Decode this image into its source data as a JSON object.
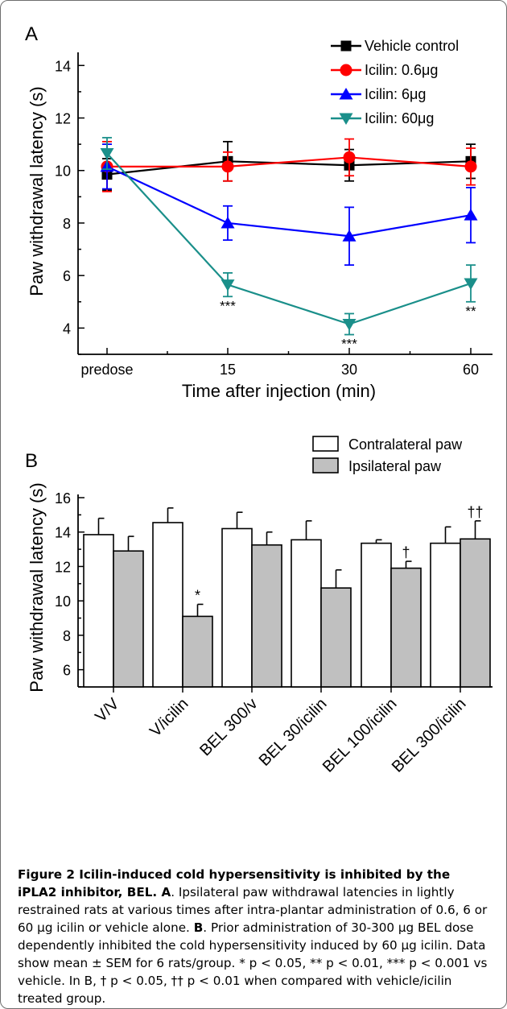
{
  "chart_data": [
    {
      "panel": "A",
      "type": "line",
      "ylabel": "Paw withdrawal latency (s)",
      "xlabel": "Time after injection (min)",
      "categories": [
        "predose",
        "15",
        "30",
        "60"
      ],
      "ylim": [
        3,
        14.5
      ],
      "yticks": [
        4,
        6,
        8,
        10,
        12,
        14
      ],
      "legend_position": "top-right",
      "series": [
        {
          "name": "Vehicle control",
          "color": "#000000",
          "marker": "square",
          "values": [
            9.85,
            10.35,
            10.2,
            10.35
          ],
          "errors": [
            0.6,
            0.75,
            0.6,
            0.65
          ]
        },
        {
          "name": "Icilin: 0.6μg",
          "color": "#ff0000",
          "marker": "circle",
          "values": [
            10.15,
            10.15,
            10.5,
            10.15
          ],
          "errors": [
            0.95,
            0.55,
            0.7,
            0.7
          ]
        },
        {
          "name": "Icilin: 6μg",
          "color": "#0000ff",
          "marker": "triangle-up",
          "values": [
            10.15,
            8.0,
            7.5,
            8.3
          ],
          "errors": [
            0.85,
            0.65,
            1.1,
            1.05
          ]
        },
        {
          "name": "Icilin: 60μg",
          "color": "#1a8f8a",
          "marker": "triangle-down",
          "values": [
            10.65,
            5.65,
            4.15,
            5.7
          ],
          "errors": [
            0.6,
            0.45,
            0.4,
            0.7
          ]
        }
      ],
      "annotations": [
        {
          "category": "15",
          "text": "***"
        },
        {
          "category": "30",
          "text": "***"
        },
        {
          "category": "60",
          "text": "**"
        }
      ]
    },
    {
      "panel": "B",
      "type": "bar",
      "ylabel": "Paw withdrawal latency (s)",
      "categories": [
        "V/V",
        "V/icilin",
        "BEL 300/v",
        "BEL 30/icilin",
        "BEL 100/icilin",
        "BEL 300/icilin"
      ],
      "ylim": [
        5,
        16
      ],
      "yticks": [
        6,
        8,
        10,
        12,
        14,
        16
      ],
      "legend_position": "top-right",
      "series": [
        {
          "name": "Contralateral paw",
          "color": "#ffffff",
          "values": [
            13.85,
            14.55,
            14.2,
            13.55,
            13.35,
            13.35
          ],
          "errors": [
            0.95,
            0.85,
            0.95,
            1.1,
            0.2,
            0.95
          ]
        },
        {
          "name": "Ipsilateral paw",
          "color": "#c0c0c0",
          "values": [
            12.9,
            9.1,
            13.25,
            10.75,
            11.9,
            13.6
          ],
          "errors": [
            0.85,
            0.7,
            0.75,
            1.05,
            0.4,
            1.05
          ]
        }
      ],
      "annotations": [
        {
          "category": "V/icilin",
          "series": "Ipsilateral paw",
          "text": "*"
        },
        {
          "category": "BEL 100/icilin",
          "series": "Ipsilateral paw",
          "text": "†"
        },
        {
          "category": "BEL 300/icilin",
          "series": "Ipsilateral paw",
          "text": "††"
        }
      ]
    }
  ],
  "caption": {
    "title": "Figure 2 Icilin-induced cold hypersensitivity is inhibited by the iPLA2 inhibitor, BEL",
    "a_label": "A",
    "a_text": "Ipsilateral paw withdrawal latencies in lightly restrained rats at various times after intra-plantar administration of 0.6, 6 or 60 μg icilin or vehicle alone.",
    "b_label": "B",
    "b_text": "Prior administration of 30-300 μg BEL dose dependently inhibited the cold hypersensitivity induced by 60 μg icilin. Data show mean ± SEM for 6 rats/group. * p < 0.05, ** p < 0.01, *** p < 0.001 vs vehicle. In B, † p < 0.05, †† p < 0.01 when compared with vehicle/icilin treated group."
  }
}
